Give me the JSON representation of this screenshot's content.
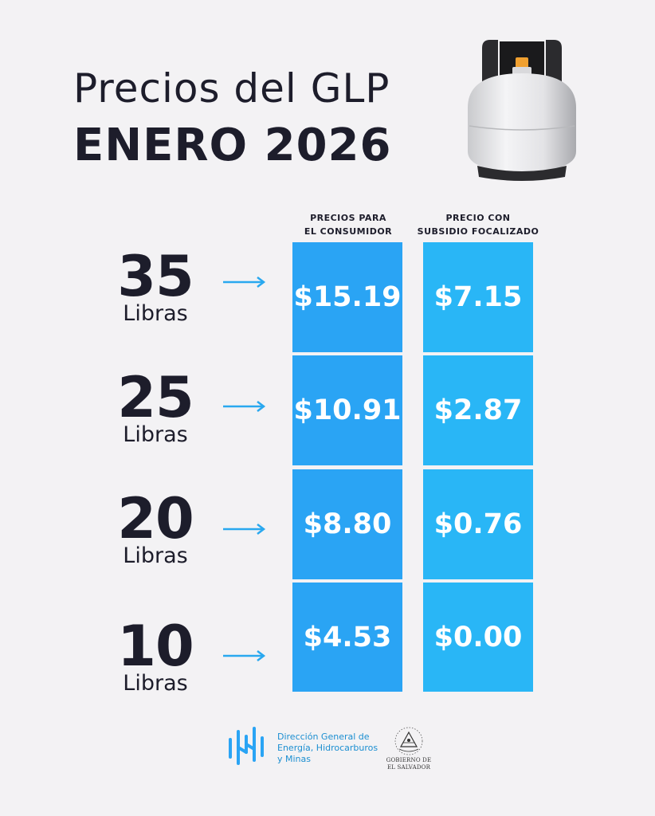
{
  "header": {
    "title_line1": "Precios del GLP",
    "title_line2": "ENERO 2026"
  },
  "columns": {
    "consumer_line1": "PRECIOS PARA",
    "consumer_line2": "EL CONSUMIDOR",
    "subsidy_line1": "PRECIO CON",
    "subsidy_line2": "SUBSIDIO FOCALIZADO"
  },
  "rows": [
    {
      "size": "35",
      "unit": "Libras",
      "consumer_price": "$15.19",
      "subsidy_price": "$7.15"
    },
    {
      "size": "25",
      "unit": "Libras",
      "consumer_price": "$10.91",
      "subsidy_price": "$2.87"
    },
    {
      "size": "20",
      "unit": "Libras",
      "consumer_price": "$8.80",
      "subsidy_price": "$0.76"
    },
    {
      "size": "10",
      "unit": "Libras",
      "consumer_price": "$4.53",
      "subsidy_price": "$0.00"
    }
  ],
  "footer": {
    "org_line1": "Dirección General de",
    "org_line2": "Energía, Hidrocarburos",
    "org_line3": "y Minas",
    "gov_line1": "GOBIERNO DE",
    "gov_line2": "EL SALVADOR"
  },
  "colors": {
    "background": "#f3f2f4",
    "consumer_cell": "#2aa4f4",
    "subsidy_cell": "#29b6f6",
    "arrow": "#29a8ef",
    "text": "#1d1d2b"
  },
  "icons": {
    "tank": "gas-cylinder-icon",
    "arrow": "arrow-right-icon",
    "org_logo": "dgehm-logo-icon",
    "gov_seal": "el-salvador-seal-icon"
  }
}
